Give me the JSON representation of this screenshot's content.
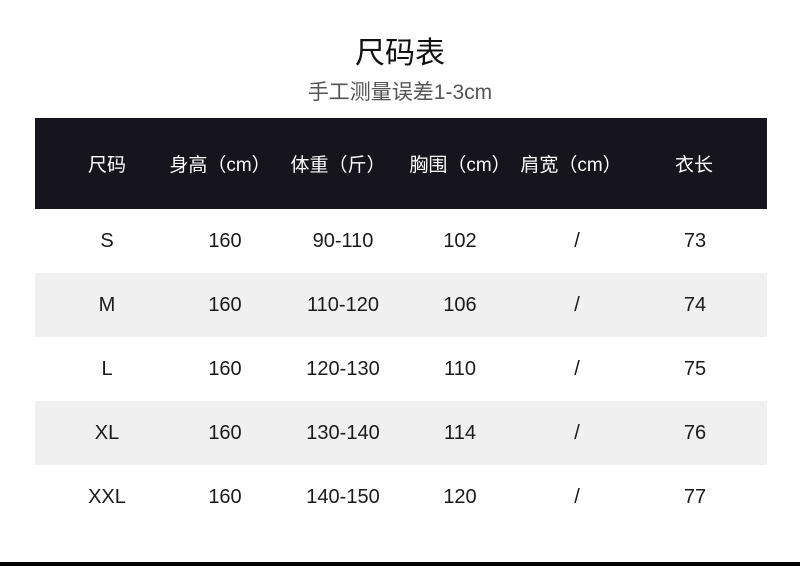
{
  "title": "尺码表",
  "subtitle": "手工测量误差1-3cm",
  "table": {
    "headers": [
      "尺码",
      "身高（cm）",
      "体重（斤）",
      "胸围（cm）",
      "肩宽（cm）",
      "衣长"
    ],
    "rows": [
      [
        "S",
        "160",
        "90-110",
        "102",
        "/",
        "73"
      ],
      [
        "M",
        "160",
        "110-120",
        "106",
        "/",
        "74"
      ],
      [
        "L",
        "160",
        "120-130",
        "110",
        "/",
        "75"
      ],
      [
        "XL",
        "160",
        "130-140",
        "114",
        "/",
        "76"
      ],
      [
        "XXL",
        "160",
        "140-150",
        "120",
        "/",
        "77"
      ]
    ]
  },
  "colors": {
    "header_bg": "#16141c",
    "alt_row_bg": "#f0f0f0"
  }
}
